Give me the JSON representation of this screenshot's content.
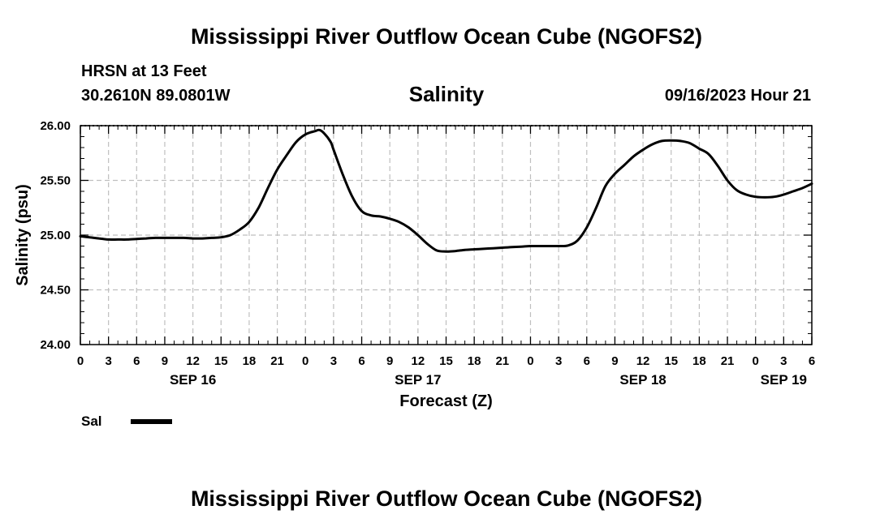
{
  "header": {
    "title": "Mississippi River Outflow Ocean Cube (NGOFS2)",
    "station": "HRSN at 13 Feet",
    "coords": "30.2610N  89.0801W",
    "variable": "Salinity",
    "datetime": "09/16/2023 Hour 21"
  },
  "footer": {
    "title": "Mississippi River Outflow Ocean Cube (NGOFS2)"
  },
  "legend": {
    "label": "Sal"
  },
  "chart_data": {
    "type": "line",
    "title": "Salinity",
    "xlabel": "Forecast (Z)",
    "ylabel": "Salinity (psu)",
    "x_unit": "hours since 09/16 00Z",
    "xlim": [
      0,
      78
    ],
    "ylim": [
      24.0,
      26.0
    ],
    "y_ticks": [
      "24.00",
      "24.50",
      "25.00",
      "25.50",
      "26.00"
    ],
    "y_tick_values": [
      24.0,
      24.5,
      25.0,
      25.5,
      26.0
    ],
    "x_tick_labels": [
      "0",
      "3",
      "6",
      "9",
      "12",
      "15",
      "18",
      "21",
      "0",
      "3",
      "6",
      "9",
      "12",
      "15",
      "18",
      "21",
      "0",
      "3",
      "6",
      "9",
      "12",
      "15",
      "18",
      "21",
      "0",
      "3",
      "6"
    ],
    "date_labels": [
      {
        "label": "SEP 16",
        "hour": 12
      },
      {
        "label": "SEP 17",
        "hour": 36
      },
      {
        "label": "SEP 18",
        "hour": 60
      },
      {
        "label": "SEP 19",
        "hour": 75
      }
    ],
    "grid": true,
    "series": [
      {
        "name": "Sal",
        "x": [
          0,
          1,
          2,
          3,
          4,
          5,
          6,
          7,
          8,
          9,
          10,
          11,
          12,
          13,
          14,
          15,
          16,
          17,
          18,
          19,
          20,
          21,
          22,
          23,
          24,
          25,
          25.5,
          26,
          26.7,
          27,
          28,
          29,
          30,
          31,
          32,
          33,
          34,
          35,
          36,
          37,
          38,
          39,
          40,
          41,
          42,
          43,
          44,
          45,
          46,
          47,
          48,
          49,
          50,
          51,
          52,
          53,
          54,
          55,
          56,
          57,
          58,
          59,
          60,
          61,
          62,
          63,
          64,
          65,
          66,
          67,
          68,
          69,
          70,
          71,
          72,
          73,
          74,
          75,
          76,
          77,
          78
        ],
        "y": [
          24.99,
          24.98,
          24.97,
          24.96,
          24.96,
          24.96,
          24.965,
          24.97,
          24.975,
          24.975,
          24.975,
          24.975,
          24.97,
          24.97,
          24.975,
          24.98,
          25.0,
          25.05,
          25.12,
          25.25,
          25.43,
          25.6,
          25.73,
          25.85,
          25.92,
          25.95,
          25.96,
          25.93,
          25.85,
          25.78,
          25.55,
          25.35,
          25.22,
          25.18,
          25.17,
          25.15,
          25.12,
          25.07,
          25.0,
          24.92,
          24.86,
          24.85,
          24.855,
          24.865,
          24.87,
          24.875,
          24.88,
          24.885,
          24.89,
          24.895,
          24.9,
          24.9,
          24.9,
          24.9,
          24.905,
          24.95,
          25.07,
          25.25,
          25.45,
          25.56,
          25.64,
          25.72,
          25.78,
          25.83,
          25.86,
          25.865,
          25.86,
          25.84,
          25.79,
          25.74,
          25.63,
          25.5,
          25.41,
          25.37,
          25.35,
          25.345,
          25.35,
          25.37,
          25.4,
          25.43,
          25.47
        ]
      }
    ]
  }
}
